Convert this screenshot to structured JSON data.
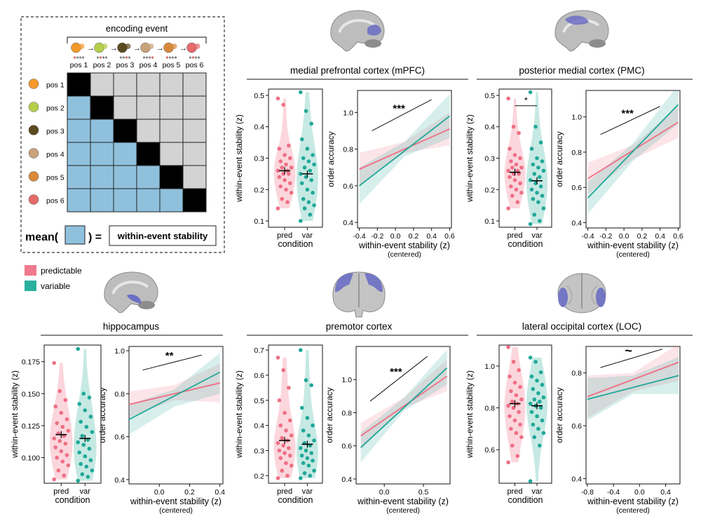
{
  "schematic": {
    "header": "encoding event",
    "positions": [
      "pos 1",
      "pos 2",
      "pos 3",
      "pos 4",
      "pos 5",
      "pos 6"
    ],
    "food_icons": [
      "orange-icon",
      "grapes-icon",
      "avocado-icon",
      "cookie-icon",
      "bagel-icon",
      "strawberry-icon"
    ],
    "cell_colors": {
      "diagonal": "#000000",
      "upper": "#d3d3d3",
      "lower": "#8fc1dd"
    },
    "formula_left": "mean(",
    "formula_right": ") =",
    "formula_result": "within-event stability"
  },
  "legend": {
    "items": [
      {
        "label": "predictable",
        "color": "#f07a8c"
      },
      {
        "label": "variable",
        "color": "#2ab0a0"
      }
    ]
  },
  "colors": {
    "pred": "#ee6f84",
    "var": "#1fa898",
    "pred_fill": "#fbd6dc",
    "var_fill": "#c6e9e3",
    "brain_roi": "#6b6fc4"
  },
  "chart_data": [
    {
      "region": "medial prefrontal cortex (mPFC)",
      "type": "violin",
      "ylabel": "within-event stability (z)",
      "xlabel": "condition",
      "categories": [
        "pred",
        "var"
      ],
      "yticks": [
        0.1,
        0.2,
        0.3,
        0.4,
        0.5
      ],
      "ylim": [
        0.08,
        0.52
      ],
      "means": [
        0.26,
        0.25
      ],
      "significance": "",
      "series": [
        {
          "name": "pred",
          "values": [
            0.49,
            0.47,
            0.34,
            0.33,
            0.31,
            0.3,
            0.29,
            0.28,
            0.27,
            0.27,
            0.26,
            0.26,
            0.25,
            0.25,
            0.24,
            0.23,
            0.22,
            0.21,
            0.2,
            0.19,
            0.17,
            0.16,
            0.14
          ]
        },
        {
          "name": "var",
          "values": [
            0.51,
            0.45,
            0.41,
            0.36,
            0.33,
            0.31,
            0.3,
            0.29,
            0.28,
            0.27,
            0.26,
            0.25,
            0.24,
            0.23,
            0.22,
            0.2,
            0.19,
            0.17,
            0.16,
            0.15,
            0.14,
            0.12,
            0.1
          ]
        }
      ]
    },
    {
      "region": "medial prefrontal cortex (mPFC)",
      "type": "line",
      "ylabel": "order accuracy",
      "xlabel": "within-event stability (z)",
      "xlabel2": "(centered)",
      "xticks": [
        -0.4,
        -0.2,
        0.0,
        0.2,
        0.4,
        0.6
      ],
      "yticks": [
        0.4,
        0.6,
        0.8,
        1.0
      ],
      "xlim": [
        -0.42,
        0.62
      ],
      "ylim": [
        0.37,
        1.12
      ],
      "significance": "***",
      "sig_line": [
        [
          -0.26,
          0.9
        ],
        [
          0.4,
          1.07
        ]
      ],
      "series": [
        {
          "name": "pred",
          "x": [
            -0.4,
            0.6
          ],
          "y": [
            0.69,
            0.91
          ]
        },
        {
          "name": "var",
          "x": [
            -0.4,
            0.6
          ],
          "y": [
            0.6,
            0.98
          ]
        }
      ],
      "bands": [
        {
          "name": "pred",
          "x": [
            -0.4,
            0.1,
            0.6
          ],
          "lo": [
            0.6,
            0.78,
            0.82
          ],
          "hi": [
            0.78,
            0.84,
            1.0
          ]
        },
        {
          "name": "var",
          "x": [
            -0.4,
            0.1,
            0.6
          ],
          "lo": [
            0.5,
            0.76,
            0.86
          ],
          "hi": [
            0.7,
            0.84,
            1.1
          ]
        }
      ]
    },
    {
      "region": "posterior medial cortex (PMC)",
      "type": "violin",
      "ylabel": "within-event stability (z)",
      "xlabel": "condition",
      "categories": [
        "pred",
        "var"
      ],
      "yticks": [
        0.1,
        0.2,
        0.3,
        0.4,
        0.5
      ],
      "ylim": [
        0.08,
        0.52
      ],
      "means": [
        0.255,
        0.228
      ],
      "significance": "*",
      "series": [
        {
          "name": "pred",
          "values": [
            0.49,
            0.4,
            0.38,
            0.33,
            0.31,
            0.3,
            0.29,
            0.28,
            0.27,
            0.27,
            0.26,
            0.26,
            0.25,
            0.25,
            0.24,
            0.23,
            0.22,
            0.21,
            0.2,
            0.19,
            0.18,
            0.16,
            0.14
          ]
        },
        {
          "name": "var",
          "values": [
            0.51,
            0.4,
            0.35,
            0.33,
            0.3,
            0.29,
            0.28,
            0.27,
            0.26,
            0.25,
            0.24,
            0.23,
            0.22,
            0.21,
            0.2,
            0.19,
            0.18,
            0.17,
            0.16,
            0.14,
            0.12,
            0.1,
            0.09
          ]
        }
      ]
    },
    {
      "region": "posterior medial cortex (PMC)",
      "type": "line",
      "ylabel": "order accuracy",
      "xlabel": "within-event stability (z)",
      "xlabel2": "(centered)",
      "xticks": [
        -0.4,
        -0.2,
        0.0,
        0.2,
        0.4,
        0.6
      ],
      "yticks": [
        0.4,
        0.6,
        0.8,
        1.0
      ],
      "xlim": [
        -0.42,
        0.62
      ],
      "ylim": [
        0.37,
        1.15
      ],
      "significance": "***",
      "sig_line": [
        [
          -0.26,
          0.9
        ],
        [
          0.4,
          1.06
        ]
      ],
      "series": [
        {
          "name": "pred",
          "x": [
            -0.4,
            0.6
          ],
          "y": [
            0.65,
            0.97
          ]
        },
        {
          "name": "var",
          "x": [
            -0.4,
            0.6
          ],
          "y": [
            0.54,
            1.07
          ]
        }
      ],
      "bands": [
        {
          "name": "pred",
          "x": [
            -0.4,
            0.1,
            0.6
          ],
          "lo": [
            0.56,
            0.76,
            0.88
          ],
          "hi": [
            0.74,
            0.84,
            1.06
          ]
        },
        {
          "name": "var",
          "x": [
            -0.4,
            0.1,
            0.6
          ],
          "lo": [
            0.45,
            0.75,
            0.96
          ],
          "hi": [
            0.63,
            0.85,
            1.18
          ]
        }
      ]
    },
    {
      "region": "hippocampus",
      "type": "violin",
      "ylabel": "within-event stability (z)",
      "xlabel": "condition",
      "categories": [
        "pred",
        "var"
      ],
      "yticks": [
        0.1,
        0.125,
        0.15,
        0.175
      ],
      "yticklabels": [
        "0.100",
        "0.125",
        "0.150",
        "0.175"
      ],
      "ylim": [
        0.08,
        0.188
      ],
      "means": [
        0.118,
        0.115
      ],
      "significance": "",
      "series": [
        {
          "name": "pred",
          "values": [
            0.174,
            0.152,
            0.145,
            0.14,
            0.135,
            0.13,
            0.127,
            0.124,
            0.121,
            0.119,
            0.117,
            0.115,
            0.113,
            0.111,
            0.108,
            0.105,
            0.102,
            0.1,
            0.097,
            0.094,
            0.09,
            0.086,
            0.083
          ]
        },
        {
          "name": "var",
          "values": [
            0.185,
            0.15,
            0.147,
            0.142,
            0.137,
            0.132,
            0.128,
            0.124,
            0.12,
            0.117,
            0.114,
            0.112,
            0.11,
            0.107,
            0.104,
            0.101,
            0.098,
            0.095,
            0.093,
            0.09,
            0.087,
            0.085,
            0.082
          ]
        }
      ]
    },
    {
      "region": "hippocampus",
      "type": "line",
      "ylabel": "order accuracy",
      "xlabel": "within-event stability (z)",
      "xlabel2": "(centered)",
      "xticks": [
        0.0,
        0.2,
        0.4
      ],
      "yticks": [
        0.4,
        0.6,
        0.8,
        1.0
      ],
      "xlim": [
        -0.2,
        0.42
      ],
      "ylim": [
        0.38,
        1.02
      ],
      "significance": "**",
      "sig_line": [
        [
          -0.11,
          0.91
        ],
        [
          0.28,
          0.98
        ]
      ],
      "series": [
        {
          "name": "pred",
          "x": [
            -0.2,
            0.4
          ],
          "y": [
            0.75,
            0.85
          ]
        },
        {
          "name": "var",
          "x": [
            -0.2,
            0.4
          ],
          "y": [
            0.68,
            0.9
          ]
        }
      ],
      "bands": [
        {
          "name": "pred",
          "x": [
            -0.2,
            0.1,
            0.4
          ],
          "lo": [
            0.69,
            0.77,
            0.76
          ],
          "hi": [
            0.81,
            0.84,
            0.94
          ]
        },
        {
          "name": "var",
          "x": [
            -0.2,
            0.1,
            0.4
          ],
          "lo": [
            0.61,
            0.74,
            0.8
          ],
          "hi": [
            0.75,
            0.82,
            0.99
          ]
        }
      ]
    },
    {
      "region": "premotor cortex",
      "type": "violin",
      "ylabel": "within-event stability (z)",
      "xlabel": "condition",
      "categories": [
        "pred",
        "var"
      ],
      "yticks": [
        0.2,
        0.3,
        0.4,
        0.5,
        0.6,
        0.7
      ],
      "ylim": [
        0.17,
        0.72
      ],
      "means": [
        0.34,
        0.325
      ],
      "significance": "",
      "series": [
        {
          "name": "pred",
          "values": [
            0.67,
            0.62,
            0.55,
            0.5,
            0.45,
            0.42,
            0.4,
            0.38,
            0.36,
            0.35,
            0.34,
            0.33,
            0.32,
            0.31,
            0.3,
            0.29,
            0.28,
            0.27,
            0.25,
            0.24,
            0.22,
            0.2,
            0.19
          ]
        },
        {
          "name": "var",
          "values": [
            0.7,
            0.58,
            0.56,
            0.47,
            0.43,
            0.4,
            0.38,
            0.36,
            0.34,
            0.33,
            0.32,
            0.31,
            0.3,
            0.29,
            0.28,
            0.27,
            0.26,
            0.25,
            0.24,
            0.22,
            0.21,
            0.2,
            0.19
          ]
        }
      ]
    },
    {
      "region": "premotor cortex",
      "type": "line",
      "ylabel": "order accuracy",
      "xlabel": "within-event stability (z)",
      "xlabel2": "(centered)",
      "xticks": [
        0.0,
        0.5
      ],
      "yticks": [
        0.4,
        0.6,
        0.8,
        1.0
      ],
      "xlim": [
        -0.36,
        0.84
      ],
      "ylim": [
        0.37,
        1.2
      ],
      "significance": "***",
      "sig_line": [
        [
          -0.18,
          0.87
        ],
        [
          0.55,
          1.14
        ]
      ],
      "series": [
        {
          "name": "pred",
          "x": [
            -0.3,
            0.8
          ],
          "y": [
            0.66,
            1.02
          ]
        },
        {
          "name": "var",
          "x": [
            -0.3,
            0.8
          ],
          "y": [
            0.59,
            1.07
          ]
        }
      ],
      "bands": [
        {
          "name": "pred",
          "x": [
            -0.3,
            0.25,
            0.8
          ],
          "lo": [
            0.58,
            0.83,
            0.93
          ],
          "hi": [
            0.74,
            0.89,
            1.12
          ]
        },
        {
          "name": "var",
          "x": [
            -0.3,
            0.25,
            0.8
          ],
          "lo": [
            0.5,
            0.81,
            0.97
          ],
          "hi": [
            0.68,
            0.89,
            1.18
          ]
        }
      ]
    },
    {
      "region": "lateral occipital cortex (LOC)",
      "type": "violin",
      "ylabel": "within-event stability (z)",
      "xlabel": "condition",
      "categories": [
        "pred",
        "var"
      ],
      "yticks": [
        0.6,
        0.8,
        1.0
      ],
      "ylim": [
        0.44,
        1.1
      ],
      "means": [
        0.82,
        0.81
      ],
      "significance": "",
      "series": [
        {
          "name": "pred",
          "values": [
            1.09,
            1.02,
            0.98,
            0.95,
            0.92,
            0.9,
            0.88,
            0.86,
            0.84,
            0.83,
            0.82,
            0.81,
            0.8,
            0.78,
            0.76,
            0.74,
            0.72,
            0.7,
            0.68,
            0.66,
            0.62,
            0.57,
            0.54
          ]
        },
        {
          "name": "var",
          "values": [
            1.04,
            1.02,
            0.97,
            0.95,
            0.93,
            0.91,
            0.89,
            0.87,
            0.85,
            0.84,
            0.83,
            0.82,
            0.81,
            0.8,
            0.78,
            0.76,
            0.74,
            0.72,
            0.7,
            0.68,
            0.66,
            0.62,
            0.45
          ]
        }
      ]
    },
    {
      "region": "lateral occipital cortex (LOC)",
      "type": "line",
      "ylabel": "order accuracy",
      "xlabel": "within-event stability (z)",
      "xlabel2": "(centered)",
      "xticks": [
        -0.8,
        -0.4,
        0.0,
        0.4
      ],
      "yticks": [
        0.4,
        0.6,
        0.8
      ],
      "xlim": [
        -0.82,
        0.62
      ],
      "ylim": [
        0.38,
        0.9
      ],
      "significance": "~",
      "sig_line": [
        [
          -0.6,
          0.82
        ],
        [
          0.35,
          0.89
        ]
      ],
      "series": [
        {
          "name": "pred",
          "x": [
            -0.8,
            0.6
          ],
          "y": [
            0.71,
            0.84
          ]
        },
        {
          "name": "var",
          "x": [
            -0.8,
            0.6
          ],
          "y": [
            0.7,
            0.79
          ]
        }
      ],
      "bands": [
        {
          "name": "pred",
          "x": [
            -0.8,
            -0.1,
            0.6
          ],
          "lo": [
            0.63,
            0.73,
            0.77
          ],
          "hi": [
            0.79,
            0.8,
            0.91
          ]
        },
        {
          "name": "var",
          "x": [
            -0.8,
            -0.1,
            0.6
          ],
          "lo": [
            0.62,
            0.72,
            0.72
          ],
          "hi": [
            0.78,
            0.79,
            0.86
          ]
        }
      ]
    }
  ]
}
